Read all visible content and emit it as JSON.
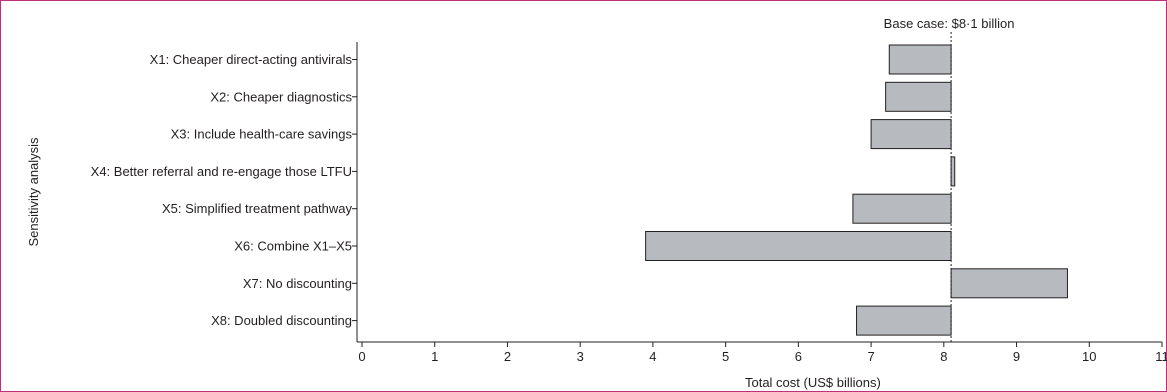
{
  "chart_data": {
    "type": "bar",
    "orientation": "horizontal",
    "categories": [
      "X1: Cheaper direct-acting antivirals",
      "X2: Cheaper diagnostics",
      "X3: Include health-care savings",
      "X4: Better referral and re-engage those LTFU",
      "X5: Simplified treatment pathway",
      "X6: Combine X1–X5",
      "X7: No discounting",
      "X8: Doubled discounting"
    ],
    "base_value": 8.1,
    "values": [
      7.25,
      7.2,
      7.0,
      8.15,
      6.75,
      3.9,
      9.7,
      6.8
    ],
    "xlabel": "Total cost (US$ billions)",
    "ylabel": "Sensitivity analysis",
    "xlim": [
      0,
      11
    ],
    "xticks": [
      "0",
      "1",
      "2",
      "3",
      "4",
      "5",
      "6",
      "7",
      "8",
      "9",
      "10",
      "11"
    ],
    "annotation": "Base case: $8·1 billion",
    "grid": false,
    "legend": "none",
    "bar_color": "#b7bbbf"
  }
}
